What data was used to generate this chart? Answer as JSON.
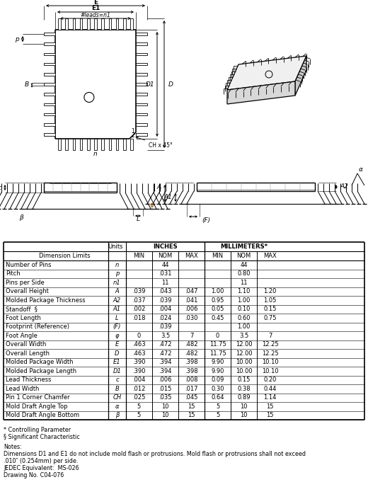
{
  "table_rows": [
    [
      "Number of Pins",
      "n",
      "",
      "44",
      "",
      "",
      "44",
      ""
    ],
    [
      "Pitch",
      "p",
      "",
      ".031",
      "",
      "",
      "0.80",
      ""
    ],
    [
      "Pins per Side",
      "n1",
      "",
      "11",
      "",
      "",
      "11",
      ""
    ],
    [
      "Overall Height",
      "A",
      ".039",
      ".043",
      ".047",
      "1.00",
      "1.10",
      "1.20"
    ],
    [
      "Molded Package Thickness",
      "A2",
      ".037",
      ".039",
      ".041",
      "0.95",
      "1.00",
      "1.05"
    ],
    [
      "Standoff  §",
      "A1",
      ".002",
      ".004",
      ".006",
      "0.05",
      "0.10",
      "0.15"
    ],
    [
      "Foot Length",
      "L",
      ".018",
      ".024",
      ".030",
      "0.45",
      "0.60",
      "0.75"
    ],
    [
      "Footprint (Reference)",
      "(F)",
      "",
      ".039",
      "",
      "",
      "1.00",
      ""
    ],
    [
      "Foot Angle",
      "φ",
      "0",
      "3.5",
      "7",
      "0",
      "3.5",
      "7"
    ],
    [
      "Overall Width",
      "E",
      ".463",
      ".472",
      ".482",
      "11.75",
      "12.00",
      "12.25"
    ],
    [
      "Overall Length",
      "D",
      ".463",
      ".472",
      ".482",
      "11.75",
      "12.00",
      "12.25"
    ],
    [
      "Molded Package Width",
      "E1",
      ".390",
      ".394",
      ".398",
      "9.90",
      "10.00",
      "10.10"
    ],
    [
      "Molded Package Length",
      "D1",
      ".390",
      ".394",
      ".398",
      "9.90",
      "10.00",
      "10.10"
    ],
    [
      "Lead Thickness",
      "c",
      ".004",
      ".006",
      ".008",
      "0.09",
      "0.15",
      "0.20"
    ],
    [
      "Lead Width",
      "B",
      ".012",
      ".015",
      ".017",
      "0.30",
      "0.38",
      "0.44"
    ],
    [
      "Pin 1 Corner Chamfer",
      "CH",
      ".025",
      ".035",
      ".045",
      "0.64",
      "0.89",
      "1.14"
    ],
    [
      "Mold Draft Angle Top",
      "α",
      "5",
      "10",
      "15",
      "5",
      "10",
      "15"
    ],
    [
      "Mold Draft Angle Bottom",
      "β",
      "5",
      "10",
      "15",
      "5",
      "10",
      "15"
    ]
  ],
  "footnotes": [
    "* Controlling Parameter",
    "§ Significant Characteristic",
    "",
    "Notes:",
    "Dimensions D1 and E1 do not include mold flash or protrusions. Mold flash or protrusions shall not exceed",
    ".010″ (0.254mm) per side.",
    "JEDEC Equivalent:  MS-026",
    "Drawing No. C04-076"
  ],
  "bg_color": "#ffffff"
}
